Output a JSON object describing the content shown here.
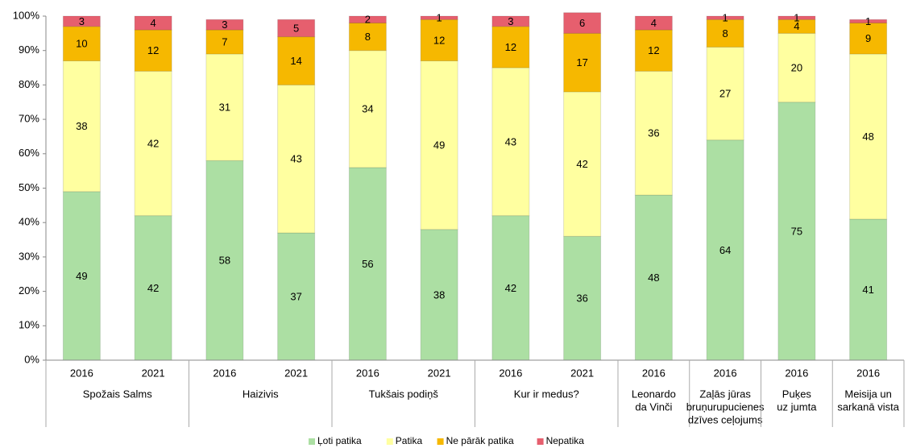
{
  "chart_data": {
    "type": "stacked_bar_100",
    "groups": [
      {
        "label": [
          "Spožais Salms"
        ],
        "categories": [
          "2016",
          "2021"
        ]
      },
      {
        "label": [
          "Haizivis"
        ],
        "categories": [
          "2016",
          "2021"
        ]
      },
      {
        "label": [
          "Tukšais podiņš"
        ],
        "categories": [
          "2016",
          "2021"
        ]
      },
      {
        "label": [
          "Kur ir medus?"
        ],
        "categories": [
          "2016",
          "2021"
        ]
      },
      {
        "label": [
          "Leonardo",
          "da Vinči"
        ],
        "categories": [
          "2016"
        ]
      },
      {
        "label": [
          "Zaļās jūras",
          "bruņurupucienes",
          "dzīves ceļojums"
        ],
        "categories": [
          "2016"
        ]
      },
      {
        "label": [
          "Puķes",
          "uz jumta"
        ],
        "categories": [
          "2016"
        ]
      },
      {
        "label": [
          "Meisija un",
          "sarkanā vista"
        ],
        "categories": [
          "2016"
        ]
      }
    ],
    "series": [
      {
        "name": "Ļoti patika",
        "color": "#acdfa3",
        "values": [
          49,
          42,
          58,
          37,
          56,
          38,
          42,
          36,
          48,
          64,
          75,
          41
        ]
      },
      {
        "name": "Patika",
        "color": "#ffffa0",
        "values": [
          38,
          42,
          31,
          43,
          34,
          49,
          43,
          42,
          36,
          27,
          20,
          48
        ]
      },
      {
        "name": "Ne pārāk patika",
        "color": "#f6b800",
        "values": [
          10,
          12,
          7,
          14,
          8,
          12,
          12,
          17,
          12,
          8,
          4,
          9
        ]
      },
      {
        "name": "Nepatika",
        "color": "#e65f6e",
        "values": [
          3,
          4,
          3,
          5,
          2,
          1,
          3,
          6,
          4,
          1,
          1,
          1
        ]
      }
    ],
    "ylim": [
      0,
      100
    ],
    "yticks": [
      {
        "value": 0,
        "label": "0%"
      },
      {
        "value": 10,
        "label": "10%"
      },
      {
        "value": 20,
        "label": "20%"
      },
      {
        "value": 30,
        "label": "30%"
      },
      {
        "value": 40,
        "label": "40%"
      },
      {
        "value": 50,
        "label": "50%"
      },
      {
        "value": 60,
        "label": "60%"
      },
      {
        "value": 70,
        "label": "70%"
      },
      {
        "value": 80,
        "label": "80%"
      },
      {
        "value": 90,
        "label": "90%"
      },
      {
        "value": 100,
        "label": "100%"
      }
    ],
    "legend": "bottom"
  }
}
